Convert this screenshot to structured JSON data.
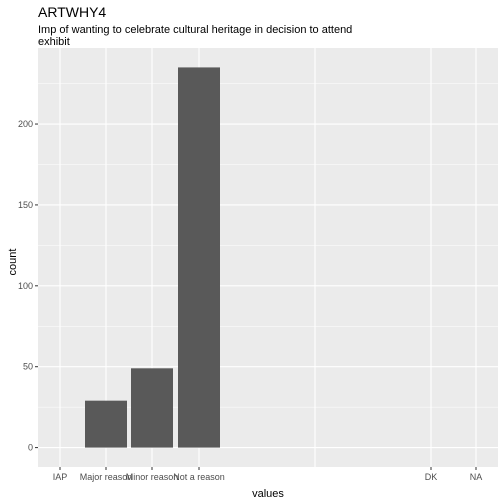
{
  "chart_data": {
    "type": "bar",
    "title": "ARTWHY4",
    "subtitle_lines": [
      "Imp of wanting to celebrate cultural heritage in decision to attend",
      "exhibit"
    ],
    "xlabel": "values",
    "ylabel": "count",
    "categories": [
      "IAP",
      "Major reason",
      "Minor reason",
      "Not a reason",
      "DK",
      "NA"
    ],
    "values": [
      0,
      29,
      49,
      235,
      0,
      0
    ],
    "y_ticks": [
      0,
      50,
      100,
      150,
      200
    ],
    "ylim": [
      -12,
      247
    ],
    "grid": true,
    "colors": {
      "panel_background": "#ebebeb",
      "grid_major": "#ffffff",
      "bar_fill": "#595959",
      "tick_color": "#333333"
    }
  }
}
